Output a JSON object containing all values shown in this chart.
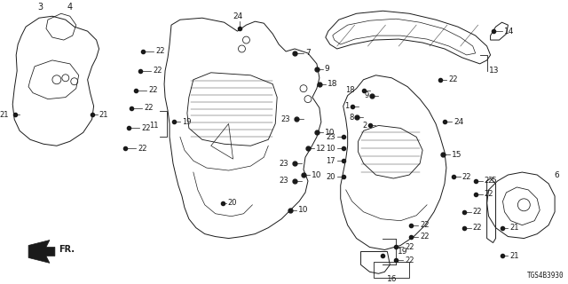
{
  "bg_color": "#ffffff",
  "line_color": "#1a1a1a",
  "figsize": [
    6.4,
    3.2
  ],
  "dpi": 100,
  "diagram_code": "TGS4B3930",
  "gray": "#888888",
  "darkgray": "#555555"
}
